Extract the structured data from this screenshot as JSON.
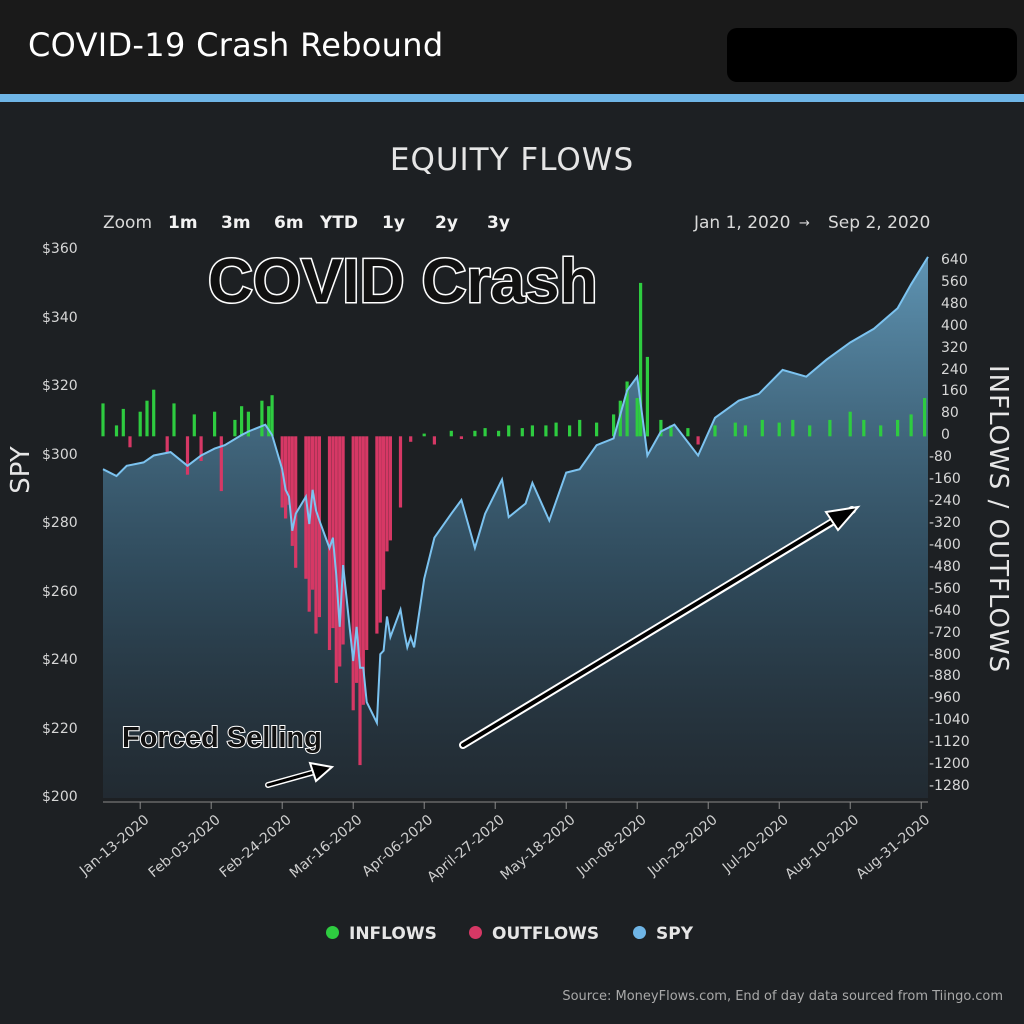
{
  "header": {
    "title": "COVID-19 Crash Rebound"
  },
  "chart": {
    "title": "EQUITY FLOWS",
    "zoom_label": "Zoom",
    "zoom_options": [
      "1m",
      "3m",
      "6m",
      "YTD",
      "1y",
      "2y",
      "3y"
    ],
    "range_start": "Jan 1, 2020",
    "range_arrow": "→",
    "range_end": "Sep 2, 2020",
    "y_left_title": "SPY",
    "y_right_title": "INFLOWS / OUTFLOWS",
    "annotation_main": "COVID Crash",
    "annotation_forced": "Forced Selling",
    "legend": [
      {
        "label": "INFLOWS",
        "color": "#2ecc40"
      },
      {
        "label": "OUTFLOWS",
        "color": "#d63865"
      },
      {
        "label": "SPY",
        "color": "#6fb5e6"
      }
    ],
    "source": "Source: MoneyFlows.com, End of day data sourced from Tiingo.com"
  },
  "chart_data": {
    "type": "bar+area",
    "y_left": {
      "label": "SPY",
      "ticks": [
        "$360",
        "$340",
        "$320",
        "$300",
        "$280",
        "$260",
        "$240",
        "$220",
        "$200"
      ],
      "range": [
        200,
        360
      ]
    },
    "y_right": {
      "label": "INFLOWS / OUTFLOWS",
      "ticks": [
        "640",
        "560",
        "480",
        "400",
        "320",
        "240",
        "160",
        "80",
        "0",
        "-80",
        "-160",
        "-240",
        "-320",
        "-400",
        "-480",
        "-560",
        "-640",
        "-720",
        "-800",
        "-880",
        "-960",
        "-1040",
        "-1120",
        "-1200",
        "-1280"
      ],
      "range": [
        -1320,
        680
      ]
    },
    "x_ticks": [
      "Jan-13-2020",
      "Feb-03-2020",
      "Feb-24-2020",
      "Mar-16-2020",
      "Apr-06-2020",
      "April-27-2020",
      "May-18-2020",
      "Jun-08-2020",
      "Jun-29-2020",
      "Jul-20-2020",
      "Aug-10-2020",
      "Aug-31-2020"
    ],
    "flows": [
      {
        "x": "2020-01-02",
        "v": 120
      },
      {
        "x": "2020-01-06",
        "v": 40
      },
      {
        "x": "2020-01-08",
        "v": 100
      },
      {
        "x": "2020-01-10",
        "v": -40
      },
      {
        "x": "2020-01-13",
        "v": 90
      },
      {
        "x": "2020-01-15",
        "v": 130
      },
      {
        "x": "2020-01-17",
        "v": 170
      },
      {
        "x": "2020-01-21",
        "v": -60
      },
      {
        "x": "2020-01-23",
        "v": 120
      },
      {
        "x": "2020-01-27",
        "v": -140
      },
      {
        "x": "2020-01-29",
        "v": 80
      },
      {
        "x": "2020-01-31",
        "v": -90
      },
      {
        "x": "2020-02-04",
        "v": 90
      },
      {
        "x": "2020-02-06",
        "v": -200
      },
      {
        "x": "2020-02-10",
        "v": 60
      },
      {
        "x": "2020-02-12",
        "v": 110
      },
      {
        "x": "2020-02-14",
        "v": 90
      },
      {
        "x": "2020-02-18",
        "v": 130
      },
      {
        "x": "2020-02-20",
        "v": 110
      },
      {
        "x": "2020-02-21",
        "v": 150
      },
      {
        "x": "2020-02-24",
        "v": -260
      },
      {
        "x": "2020-02-25",
        "v": -300
      },
      {
        "x": "2020-02-26",
        "v": -250
      },
      {
        "x": "2020-02-27",
        "v": -400
      },
      {
        "x": "2020-02-28",
        "v": -480
      },
      {
        "x": "2020-03-02",
        "v": -520
      },
      {
        "x": "2020-03-03",
        "v": -640
      },
      {
        "x": "2020-03-04",
        "v": -560
      },
      {
        "x": "2020-03-05",
        "v": -720
      },
      {
        "x": "2020-03-06",
        "v": -660
      },
      {
        "x": "2020-03-09",
        "v": -780
      },
      {
        "x": "2020-03-10",
        "v": -700
      },
      {
        "x": "2020-03-11",
        "v": -900
      },
      {
        "x": "2020-03-12",
        "v": -840
      },
      {
        "x": "2020-03-13",
        "v": -760
      },
      {
        "x": "2020-03-16",
        "v": -1000
      },
      {
        "x": "2020-03-17",
        "v": -900
      },
      {
        "x": "2020-03-18",
        "v": -1200
      },
      {
        "x": "2020-03-19",
        "v": -980
      },
      {
        "x": "2020-03-20",
        "v": -780
      },
      {
        "x": "2020-03-23",
        "v": -720
      },
      {
        "x": "2020-03-24",
        "v": -680
      },
      {
        "x": "2020-03-25",
        "v": -560
      },
      {
        "x": "2020-03-26",
        "v": -420
      },
      {
        "x": "2020-03-27",
        "v": -380
      },
      {
        "x": "2020-03-30",
        "v": -260
      },
      {
        "x": "2020-04-02",
        "v": -20
      },
      {
        "x": "2020-04-06",
        "v": 10
      },
      {
        "x": "2020-04-09",
        "v": -30
      },
      {
        "x": "2020-04-14",
        "v": 20
      },
      {
        "x": "2020-04-17",
        "v": -10
      },
      {
        "x": "2020-04-21",
        "v": 20
      },
      {
        "x": "2020-04-24",
        "v": 30
      },
      {
        "x": "2020-04-28",
        "v": 20
      },
      {
        "x": "2020-05-01",
        "v": 40
      },
      {
        "x": "2020-05-05",
        "v": 30
      },
      {
        "x": "2020-05-08",
        "v": 40
      },
      {
        "x": "2020-05-12",
        "v": 40
      },
      {
        "x": "2020-05-15",
        "v": 50
      },
      {
        "x": "2020-05-19",
        "v": 40
      },
      {
        "x": "2020-05-22",
        "v": 60
      },
      {
        "x": "2020-05-27",
        "v": 50
      },
      {
        "x": "2020-06-01",
        "v": 80
      },
      {
        "x": "2020-06-03",
        "v": 130
      },
      {
        "x": "2020-06-05",
        "v": 200
      },
      {
        "x": "2020-06-08",
        "v": 140
      },
      {
        "x": "2020-06-09",
        "v": 560
      },
      {
        "x": "2020-06-11",
        "v": 290
      },
      {
        "x": "2020-06-15",
        "v": 60
      },
      {
        "x": "2020-06-18",
        "v": 40
      },
      {
        "x": "2020-06-23",
        "v": 30
      },
      {
        "x": "2020-06-26",
        "v": -30
      },
      {
        "x": "2020-07-01",
        "v": 40
      },
      {
        "x": "2020-07-07",
        "v": 50
      },
      {
        "x": "2020-07-10",
        "v": 40
      },
      {
        "x": "2020-07-15",
        "v": 60
      },
      {
        "x": "2020-07-20",
        "v": 50
      },
      {
        "x": "2020-07-24",
        "v": 60
      },
      {
        "x": "2020-07-29",
        "v": 40
      },
      {
        "x": "2020-08-04",
        "v": 60
      },
      {
        "x": "2020-08-10",
        "v": 90
      },
      {
        "x": "2020-08-14",
        "v": 60
      },
      {
        "x": "2020-08-19",
        "v": 40
      },
      {
        "x": "2020-08-24",
        "v": 60
      },
      {
        "x": "2020-08-28",
        "v": 80
      },
      {
        "x": "2020-09-01",
        "v": 140
      }
    ],
    "spy": [
      {
        "x": "2020-01-02",
        "v": 296
      },
      {
        "x": "2020-01-06",
        "v": 294
      },
      {
        "x": "2020-01-09",
        "v": 297
      },
      {
        "x": "2020-01-14",
        "v": 298
      },
      {
        "x": "2020-01-17",
        "v": 300
      },
      {
        "x": "2020-01-22",
        "v": 301
      },
      {
        "x": "2020-01-27",
        "v": 297
      },
      {
        "x": "2020-01-31",
        "v": 300
      },
      {
        "x": "2020-02-04",
        "v": 302
      },
      {
        "x": "2020-02-07",
        "v": 303
      },
      {
        "x": "2020-02-12",
        "v": 306
      },
      {
        "x": "2020-02-14",
        "v": 307
      },
      {
        "x": "2020-02-19",
        "v": 309
      },
      {
        "x": "2020-02-21",
        "v": 306
      },
      {
        "x": "2020-02-24",
        "v": 296
      },
      {
        "x": "2020-02-25",
        "v": 290
      },
      {
        "x": "2020-02-26",
        "v": 288
      },
      {
        "x": "2020-02-27",
        "v": 278
      },
      {
        "x": "2020-02-28",
        "v": 283
      },
      {
        "x": "2020-03-02",
        "v": 288
      },
      {
        "x": "2020-03-03",
        "v": 280
      },
      {
        "x": "2020-03-04",
        "v": 290
      },
      {
        "x": "2020-03-05",
        "v": 284
      },
      {
        "x": "2020-03-06",
        "v": 281
      },
      {
        "x": "2020-03-09",
        "v": 273
      },
      {
        "x": "2020-03-10",
        "v": 276
      },
      {
        "x": "2020-03-11",
        "v": 265
      },
      {
        "x": "2020-03-12",
        "v": 250
      },
      {
        "x": "2020-03-13",
        "v": 268
      },
      {
        "x": "2020-03-16",
        "v": 240
      },
      {
        "x": "2020-03-17",
        "v": 250
      },
      {
        "x": "2020-03-18",
        "v": 238
      },
      {
        "x": "2020-03-19",
        "v": 238
      },
      {
        "x": "2020-03-20",
        "v": 228
      },
      {
        "x": "2020-03-23",
        "v": 222
      },
      {
        "x": "2020-03-24",
        "v": 242
      },
      {
        "x": "2020-03-25",
        "v": 243
      },
      {
        "x": "2020-03-26",
        "v": 253
      },
      {
        "x": "2020-03-27",
        "v": 247
      },
      {
        "x": "2020-03-30",
        "v": 255
      },
      {
        "x": "2020-03-31",
        "v": 249
      },
      {
        "x": "2020-04-01",
        "v": 244
      },
      {
        "x": "2020-04-02",
        "v": 247
      },
      {
        "x": "2020-04-03",
        "v": 244
      },
      {
        "x": "2020-04-06",
        "v": 264
      },
      {
        "x": "2020-04-09",
        "v": 276
      },
      {
        "x": "2020-04-14",
        "v": 283
      },
      {
        "x": "2020-04-17",
        "v": 287
      },
      {
        "x": "2020-04-21",
        "v": 273
      },
      {
        "x": "2020-04-24",
        "v": 283
      },
      {
        "x": "2020-04-29",
        "v": 293
      },
      {
        "x": "2020-05-01",
        "v": 282
      },
      {
        "x": "2020-05-06",
        "v": 286
      },
      {
        "x": "2020-05-08",
        "v": 292
      },
      {
        "x": "2020-05-13",
        "v": 281
      },
      {
        "x": "2020-05-18",
        "v": 295
      },
      {
        "x": "2020-05-22",
        "v": 296
      },
      {
        "x": "2020-05-27",
        "v": 303
      },
      {
        "x": "2020-06-01",
        "v": 305
      },
      {
        "x": "2020-06-05",
        "v": 319
      },
      {
        "x": "2020-06-08",
        "v": 323
      },
      {
        "x": "2020-06-11",
        "v": 300
      },
      {
        "x": "2020-06-15",
        "v": 307
      },
      {
        "x": "2020-06-19",
        "v": 309
      },
      {
        "x": "2020-06-26",
        "v": 300
      },
      {
        "x": "2020-07-01",
        "v": 311
      },
      {
        "x": "2020-07-08",
        "v": 316
      },
      {
        "x": "2020-07-14",
        "v": 318
      },
      {
        "x": "2020-07-21",
        "v": 325
      },
      {
        "x": "2020-07-28",
        "v": 323
      },
      {
        "x": "2020-08-03",
        "v": 328
      },
      {
        "x": "2020-08-10",
        "v": 333
      },
      {
        "x": "2020-08-17",
        "v": 337
      },
      {
        "x": "2020-08-24",
        "v": 343
      },
      {
        "x": "2020-08-28",
        "v": 350
      },
      {
        "x": "2020-09-02",
        "v": 358
      }
    ]
  }
}
